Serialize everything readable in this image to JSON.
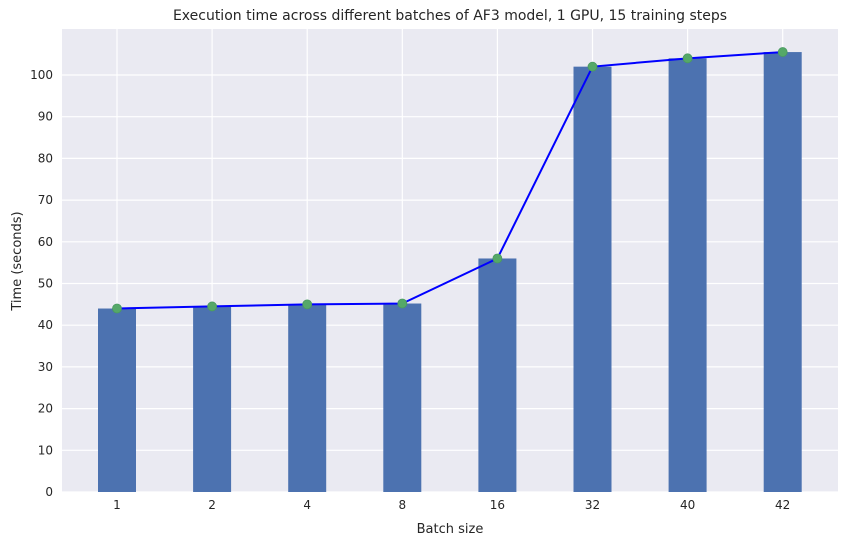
{
  "chart_data": {
    "type": "bar",
    "title": "Execution time across different batches of AF3 model, 1 GPU, 15 training steps",
    "xlabel": "Batch size",
    "ylabel": "Time (seconds)",
    "categories": [
      "1",
      "2",
      "4",
      "8",
      "16",
      "32",
      "40",
      "42"
    ],
    "values": [
      44.0,
      44.5,
      45.0,
      45.2,
      56.0,
      102.0,
      104.0,
      105.5
    ],
    "ylim": [
      0,
      110
    ],
    "yticks": [
      0,
      10,
      20,
      30,
      40,
      50,
      60,
      70,
      80,
      90,
      100
    ],
    "grid": true,
    "overlay_line": {
      "type": "line",
      "values": [
        44.0,
        44.5,
        45.0,
        45.2,
        56.0,
        102.0,
        104.0,
        105.5
      ],
      "color": "#0000ff"
    },
    "marker_color": "#55a868",
    "bar_color": "#4c72b0",
    "plot_background": "#eaeaf2"
  }
}
